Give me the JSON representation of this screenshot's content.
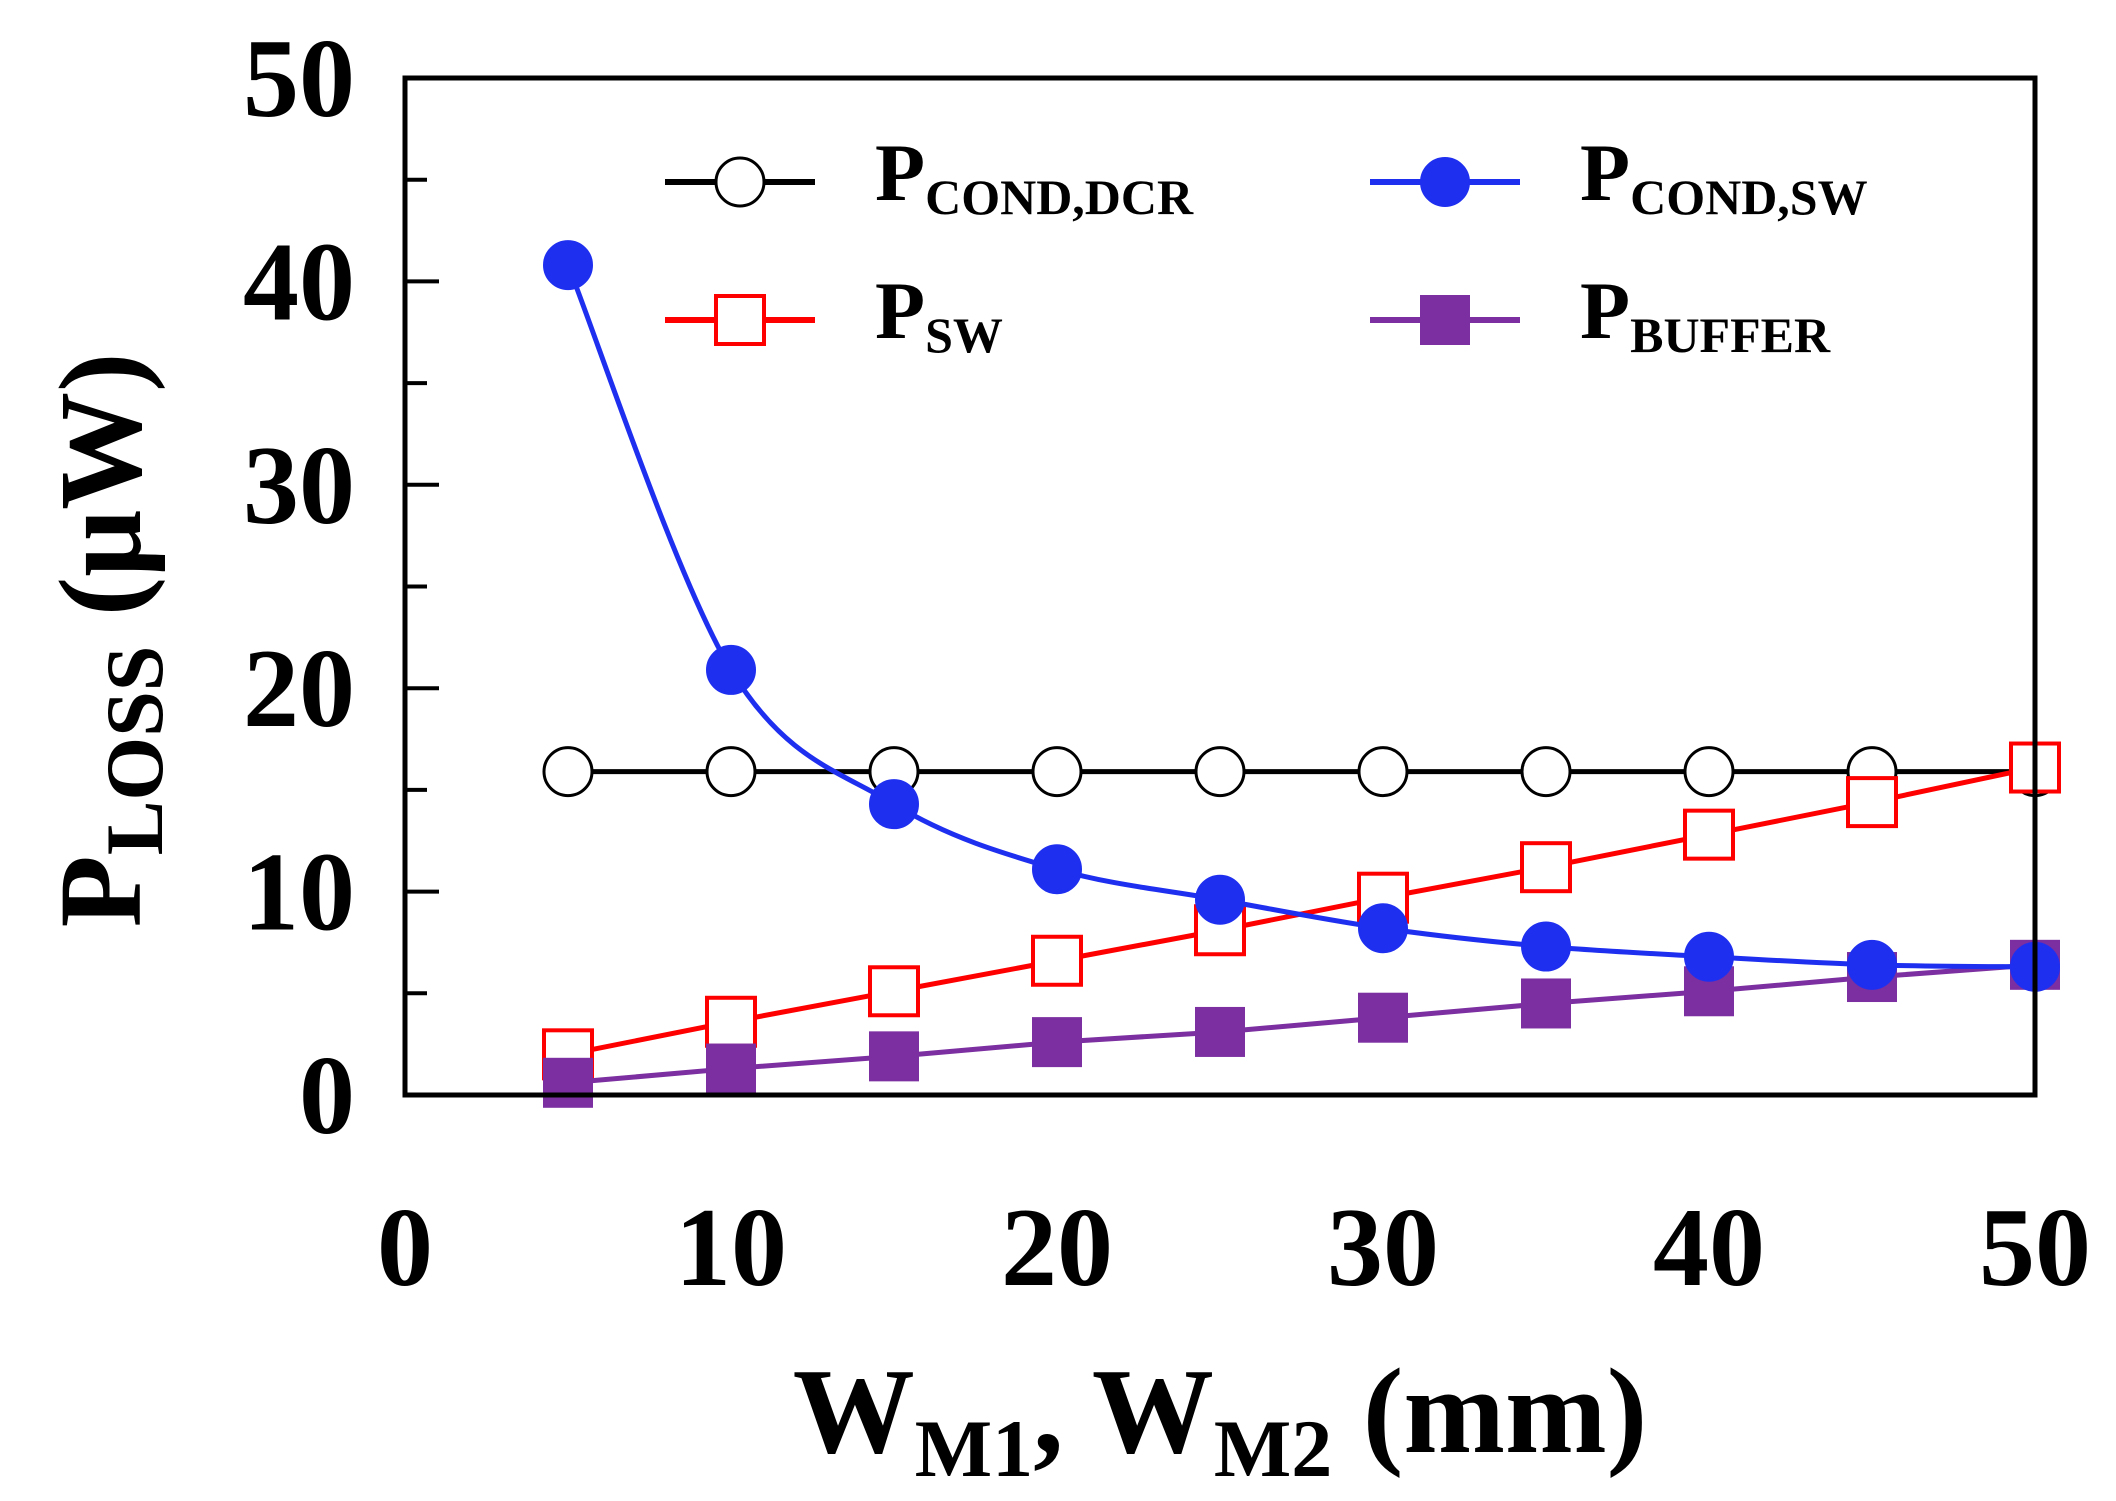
{
  "chart_data": {
    "type": "line",
    "title": "",
    "xlabel": {
      "main": "W",
      "sub1": "M1",
      "mid": ", W",
      "sub2": "M2",
      "unit": " (mm)"
    },
    "ylabel": {
      "main": "P",
      "sub": "LOSS",
      "unit": " (μW)"
    },
    "xlim": [
      0,
      50
    ],
    "ylim": [
      0,
      50
    ],
    "xticks": [
      "0",
      "10",
      "20",
      "30",
      "40",
      "50"
    ],
    "yticks": [
      "0",
      "10",
      "20",
      "30",
      "40",
      "50"
    ],
    "x": [
      5,
      10,
      15,
      20,
      25,
      30,
      35,
      40,
      45,
      50
    ],
    "series": [
      {
        "name": "P_COND,DCR",
        "label_main": "P",
        "label_sub": "COND,DCR",
        "color": "#000000",
        "marker": "open-circle",
        "values": [
          15.9,
          15.9,
          15.9,
          15.9,
          15.9,
          15.9,
          15.9,
          15.9,
          15.9,
          15.9
        ]
      },
      {
        "name": "P_COND,SW",
        "label_main": "P",
        "label_sub": "COND,SW",
        "color": "#1f2ff0",
        "marker": "filled-circle",
        "values": [
          40.8,
          20.9,
          14.3,
          11.1,
          9.6,
          8.2,
          7.3,
          6.8,
          6.4,
          6.3
        ]
      },
      {
        "name": "P_SW",
        "label_main": "P",
        "label_sub": "SW",
        "color": "#ff0000",
        "marker": "open-square",
        "values": [
          2.0,
          3.6,
          5.1,
          6.6,
          8.1,
          9.7,
          11.2,
          12.8,
          14.4,
          16.1
        ]
      },
      {
        "name": "P_BUFFER",
        "label_main": "P",
        "label_sub": "BUFFER",
        "color": "#7b2fa0",
        "marker": "filled-square",
        "values": [
          0.6,
          1.3,
          1.9,
          2.6,
          3.1,
          3.8,
          4.5,
          5.1,
          5.8,
          6.4
        ]
      }
    ],
    "legend_position": "top-right"
  }
}
